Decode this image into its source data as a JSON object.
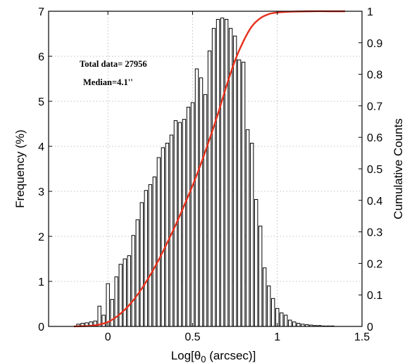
{
  "chart_data": {
    "type": "bar",
    "xlabel": "Log[θ0 (arcsec)]",
    "ylabel": "Frequency (%)",
    "y2label": "Cumulative Counts",
    "xlim": [
      -0.35,
      1.5
    ],
    "ylim": [
      0,
      7
    ],
    "y2lim": [
      0,
      1
    ],
    "grid": true,
    "bin_width": 0.025,
    "x_ticks": [
      "0",
      "0.5",
      "1",
      "1.5"
    ],
    "y_ticks": [
      "0",
      "1",
      "2",
      "3",
      "4",
      "5",
      "6",
      "7"
    ],
    "y2_ticks": [
      "0",
      "0.1",
      "0.2",
      "0.3",
      "0.4",
      "0.5",
      "0.6",
      "0.7",
      "0.8",
      "0.9",
      "1"
    ],
    "annotations": [
      "Total data= 27956",
      "Median=4.1''"
    ],
    "bars": {
      "x": [
        -0.175,
        -0.15,
        -0.125,
        -0.1,
        -0.075,
        -0.05,
        -0.025,
        0.0,
        0.025,
        0.05,
        0.075,
        0.1,
        0.125,
        0.15,
        0.175,
        0.2,
        0.225,
        0.25,
        0.275,
        0.3,
        0.325,
        0.35,
        0.375,
        0.4,
        0.425,
        0.45,
        0.475,
        0.5,
        0.525,
        0.55,
        0.575,
        0.6,
        0.625,
        0.65,
        0.675,
        0.7,
        0.725,
        0.75,
        0.775,
        0.8,
        0.825,
        0.85,
        0.875,
        0.9,
        0.925,
        0.95,
        0.975,
        1.0,
        1.025,
        1.05,
        1.075,
        1.1,
        1.125,
        1.15,
        1.175,
        1.2,
        1.225,
        1.25,
        1.275,
        1.3,
        1.325
      ],
      "values": [
        0.05,
        0.07,
        0.08,
        0.1,
        0.12,
        0.45,
        0.25,
        0.95,
        0.6,
        1.1,
        1.38,
        1.5,
        1.57,
        2.02,
        2.37,
        2.75,
        3.02,
        3.15,
        3.32,
        3.75,
        3.97,
        4.07,
        4.25,
        4.57,
        4.53,
        4.6,
        4.87,
        4.97,
        5.72,
        5.52,
        5.15,
        6.12,
        6.62,
        6.82,
        6.85,
        6.82,
        6.62,
        6.45,
        5.92,
        5.87,
        4.37,
        4.07,
        2.82,
        2.23,
        1.3,
        0.9,
        0.62,
        0.4,
        0.3,
        0.25,
        0.14,
        0.1,
        0.07,
        0.05,
        0.04,
        0.03,
        0.02,
        0.02,
        0.01,
        0.01,
        0.01
      ]
    },
    "series": [
      {
        "type": "line",
        "axis": "right",
        "color": "#e8301c",
        "x": [
          -0.2,
          -0.1,
          -0.05,
          0.0,
          0.05,
          0.1,
          0.15,
          0.2,
          0.25,
          0.3,
          0.35,
          0.4,
          0.45,
          0.5,
          0.55,
          0.6,
          0.65,
          0.7,
          0.75,
          0.8,
          0.85,
          0.9,
          0.95,
          1.0,
          1.05,
          1.1,
          1.2,
          1.3,
          1.4
        ],
        "values": [
          0.0,
          0.002,
          0.006,
          0.014,
          0.03,
          0.053,
          0.083,
          0.12,
          0.163,
          0.211,
          0.265,
          0.322,
          0.383,
          0.447,
          0.517,
          0.594,
          0.675,
          0.763,
          0.843,
          0.905,
          0.952,
          0.978,
          0.991,
          0.996,
          0.998,
          0.999,
          1.0,
          1.0,
          1.0
        ]
      }
    ]
  }
}
